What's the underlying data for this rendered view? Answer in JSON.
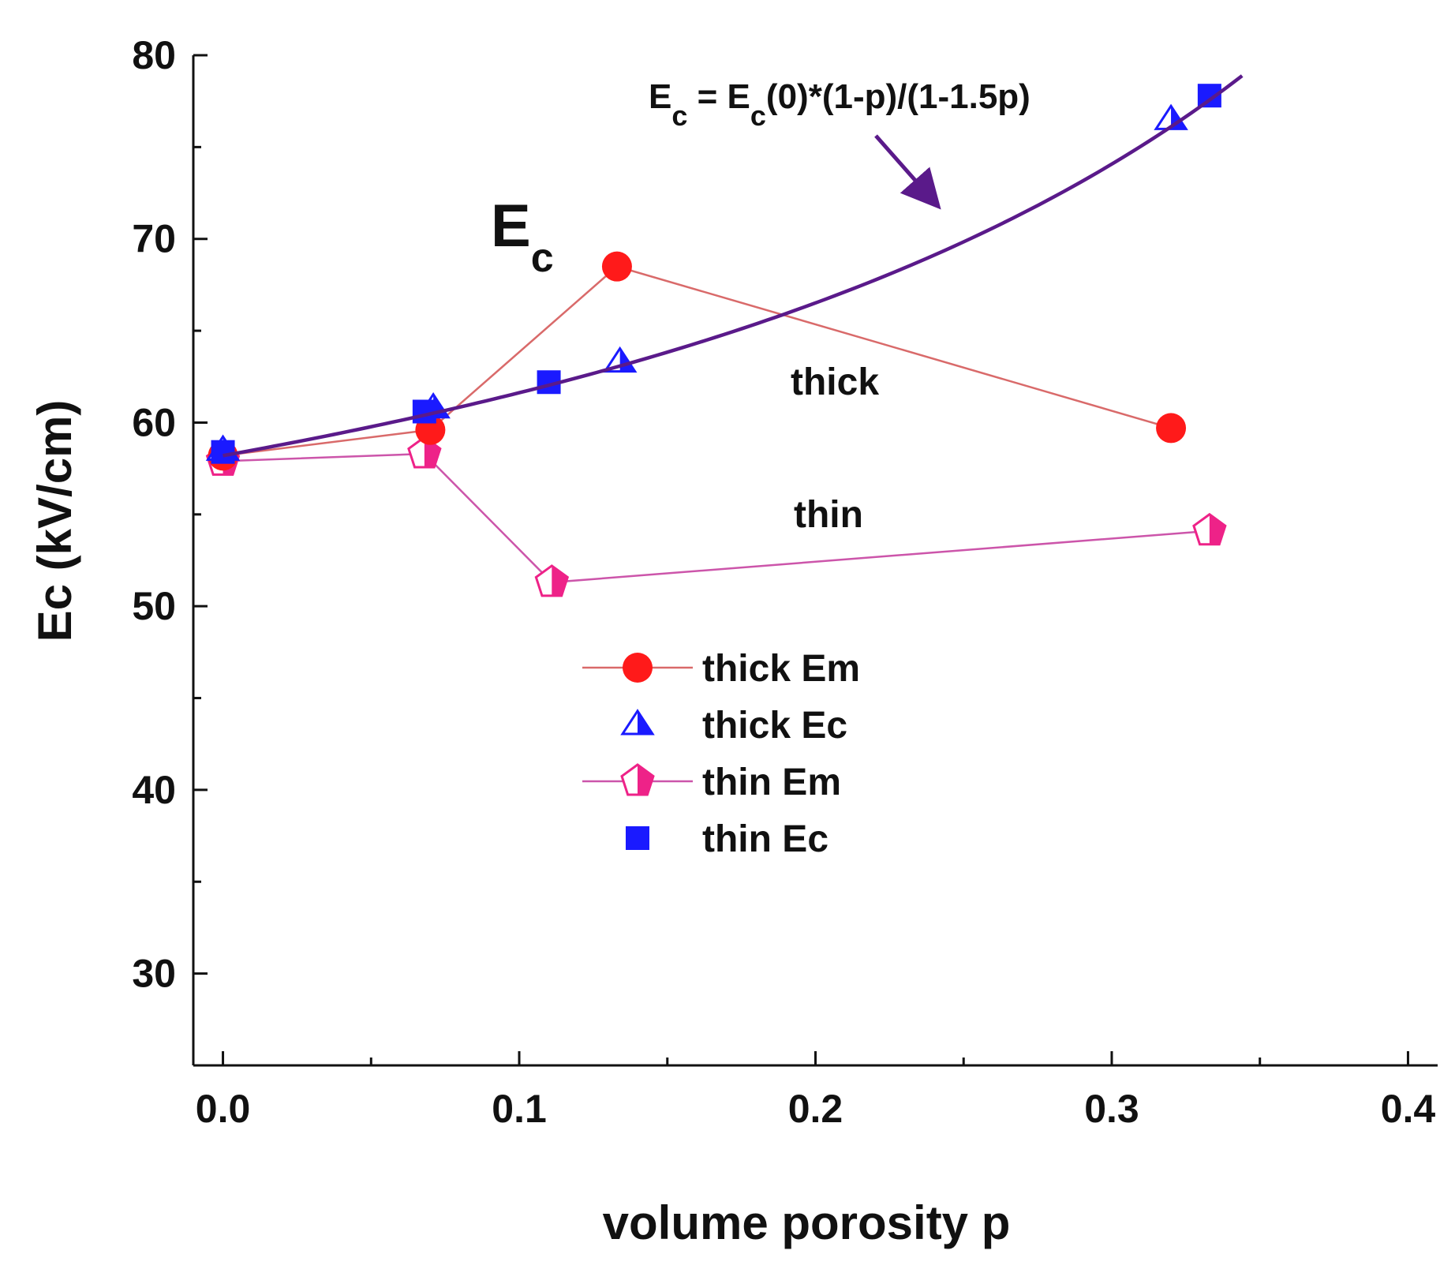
{
  "chart_data": {
    "type": "scatter",
    "title": "",
    "xlabel": "volume porosity p",
    "ylabel": "Ec (kV/cm)",
    "xlim": [
      -0.01,
      0.41
    ],
    "ylim": [
      25,
      80
    ],
    "x_ticks": [
      0.0,
      0.1,
      0.2,
      0.3,
      0.4
    ],
    "x_tick_labels": [
      "0.0",
      "0.1",
      "0.2",
      "0.3",
      "0.4"
    ],
    "y_ticks": [
      30,
      40,
      50,
      60,
      70,
      80
    ],
    "y_tick_labels": [
      "30",
      "40",
      "50",
      "60",
      "70",
      "80"
    ],
    "grid": false,
    "legend_position": "center",
    "colors": {
      "thick_em": "#ff1a1a",
      "thick_em_line": "#d96a6a",
      "thick_ec": "#1a1aff",
      "thin_em": "#ee2288",
      "thin_em_line": "#cc55aa",
      "thin_ec": "#1a1aff",
      "model": "#5a1a8a",
      "axis": "#111111"
    },
    "series": [
      {
        "name": "thick Em",
        "marker": "circle",
        "connected": true,
        "x": [
          0.0,
          0.07,
          0.133,
          0.32
        ],
        "y": [
          58.2,
          59.6,
          68.5,
          59.7
        ]
      },
      {
        "name": "thick Ec",
        "marker": "triangle",
        "connected": false,
        "x": [
          0.0,
          0.071,
          0.134,
          0.32
        ],
        "y": [
          58.5,
          60.8,
          63.3,
          76.5
        ]
      },
      {
        "name": "thin Em",
        "marker": "pentagon",
        "connected": true,
        "x": [
          0.0,
          0.068,
          0.111,
          0.333
        ],
        "y": [
          57.9,
          58.3,
          51.3,
          54.1
        ]
      },
      {
        "name": "thin Ec",
        "marker": "square",
        "connected": false,
        "x": [
          0.0,
          0.068,
          0.11,
          0.333
        ],
        "y": [
          58.4,
          60.6,
          62.2,
          77.8
        ]
      }
    ],
    "model_curve": {
      "name": "Ec = Ec(0)*(1-p)/(1-1.5p)",
      "ec0": 58.2,
      "x_start": 0.0,
      "x_end": 0.344
    },
    "annotations": {
      "formula_parts": [
        "E",
        "c",
        " = E",
        "c",
        "(0)*(1-p)/(1-1.5p)"
      ],
      "ec_big": [
        "E",
        "c"
      ],
      "thick_label": "thick",
      "thin_label": "thin"
    }
  }
}
